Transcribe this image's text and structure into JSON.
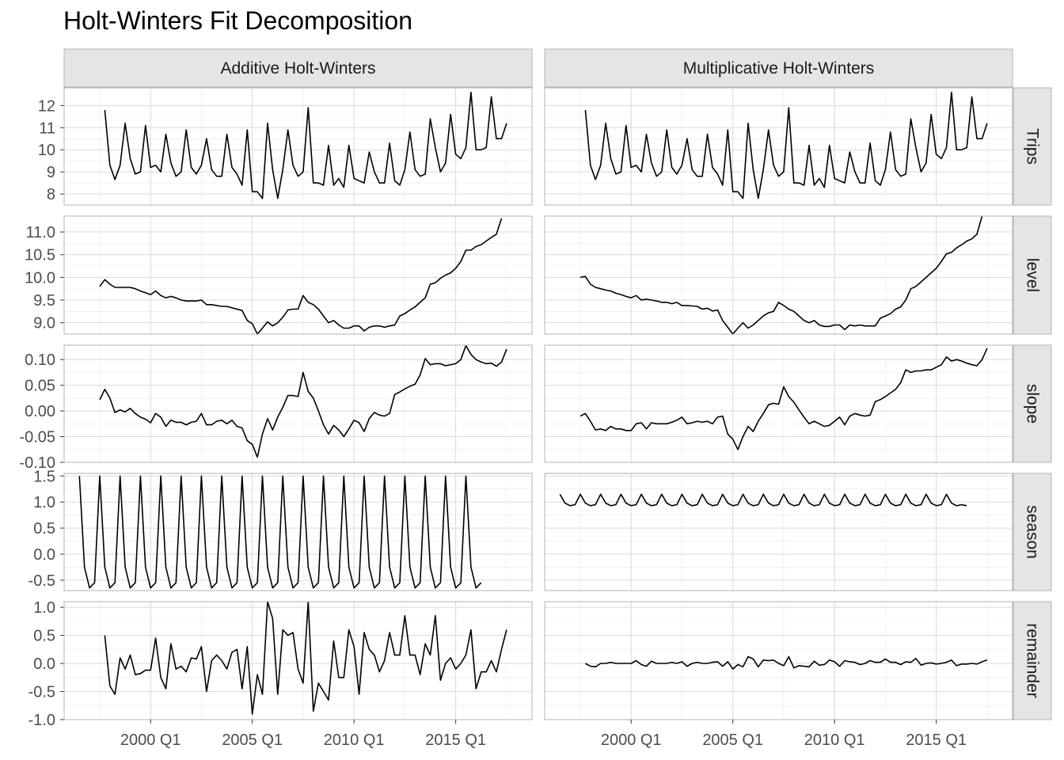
{
  "title": "Holt-Winters Fit Decomposition",
  "chart_data": {
    "type": "line",
    "title": "Holt-Winters Fit Decomposition",
    "facet_columns": [
      "Additive Holt-Winters",
      "Multiplicative Holt-Winters"
    ],
    "facet_rows": [
      "Trips",
      "level",
      "slope",
      "season",
      "remainder"
    ],
    "x_start": 1997.75,
    "x_step": 0.25,
    "x_axis": {
      "ticks": [
        2000,
        2005,
        2010,
        2015
      ],
      "tick_labels": [
        "2000 Q1",
        "2005 Q1",
        "2010 Q1",
        "2015 Q1"
      ],
      "lim": [
        1995.75,
        2018.75
      ]
    },
    "x_minor_ticks": [
      1997.5,
      2002.5,
      2007.5,
      2012.5,
      2017.5
    ],
    "rows": [
      {
        "name": "Trips",
        "ylim": [
          7.5,
          12.8
        ],
        "yticks": [
          8,
          9,
          10,
          11,
          12
        ],
        "ytick_labels": [
          "8",
          "9",
          "10",
          "11",
          "12"
        ],
        "series": {
          "additive": [
            11.8,
            9.3,
            8.65,
            9.3,
            11.2,
            9.6,
            8.9,
            9.0,
            11.1,
            9.2,
            9.3,
            9.0,
            10.7,
            9.4,
            8.8,
            9.0,
            10.9,
            9.2,
            8.9,
            9.3,
            10.5,
            9.1,
            8.8,
            8.8,
            10.7,
            9.2,
            8.9,
            8.4,
            10.9,
            8.1,
            8.1,
            7.8,
            11.2,
            9.1,
            7.8,
            9.1,
            10.9,
            9.3,
            8.8,
            9.0,
            11.9,
            8.5,
            8.5,
            8.4,
            10.2,
            8.4,
            8.7,
            8.3,
            10.2,
            8.7,
            8.6,
            8.5,
            9.9,
            9.0,
            8.5,
            8.5,
            10.3,
            8.6,
            8.4,
            9.1,
            10.8,
            9.1,
            8.8,
            8.9,
            11.4,
            10.1,
            9.0,
            9.4,
            11.6,
            9.8,
            9.6,
            10.1,
            12.6,
            10.0,
            10.0,
            10.1,
            12.4,
            10.5,
            10.5,
            11.2
          ],
          "multiplicative": [
            11.8,
            9.3,
            8.65,
            9.3,
            11.2,
            9.6,
            8.9,
            9.0,
            11.1,
            9.2,
            9.3,
            9.0,
            10.7,
            9.4,
            8.8,
            9.0,
            10.9,
            9.2,
            8.9,
            9.3,
            10.5,
            9.1,
            8.8,
            8.8,
            10.7,
            9.2,
            8.9,
            8.4,
            10.9,
            8.1,
            8.1,
            7.8,
            11.2,
            9.1,
            7.8,
            9.1,
            10.9,
            9.3,
            8.8,
            9.0,
            11.9,
            8.5,
            8.5,
            8.4,
            10.2,
            8.4,
            8.7,
            8.3,
            10.2,
            8.7,
            8.6,
            8.5,
            9.9,
            9.0,
            8.5,
            8.5,
            10.3,
            8.6,
            8.4,
            9.1,
            10.8,
            9.1,
            8.8,
            8.9,
            11.4,
            10.1,
            9.0,
            9.4,
            11.6,
            9.8,
            9.6,
            10.1,
            12.6,
            10.0,
            10.0,
            10.1,
            12.4,
            10.5,
            10.5,
            11.2
          ]
        }
      },
      {
        "name": "level",
        "ylim": [
          8.75,
          11.35
        ],
        "yticks": [
          9.0,
          9.5,
          10.0,
          10.5,
          11.0
        ],
        "ytick_labels": [
          "9.0",
          "9.5",
          "10.0",
          "10.5",
          "11.0"
        ],
        "series": {
          "additive": [
            9.8,
            9.95,
            9.85,
            9.78,
            9.78,
            9.78,
            9.78,
            9.75,
            9.7,
            9.66,
            9.62,
            9.7,
            9.6,
            9.55,
            9.58,
            9.55,
            9.5,
            9.48,
            9.48,
            9.48,
            9.5,
            9.4,
            9.4,
            9.38,
            9.36,
            9.36,
            9.33,
            9.3,
            9.27,
            9.05,
            8.98,
            8.75,
            8.88,
            9.02,
            8.93,
            9.0,
            9.12,
            9.28,
            9.3,
            9.3,
            9.6,
            9.45,
            9.4,
            9.3,
            9.15,
            9.0,
            9.05,
            8.95,
            8.88,
            8.88,
            8.93,
            8.93,
            8.82,
            8.9,
            8.93,
            8.93,
            8.9,
            8.93,
            8.95,
            9.15,
            9.2,
            9.28,
            9.35,
            9.45,
            9.55,
            9.85,
            9.88,
            9.98,
            10.05,
            10.1,
            10.2,
            10.35,
            10.6,
            10.6,
            10.68,
            10.72,
            10.8,
            10.88,
            10.95,
            11.3
          ],
          "multiplicative": [
            10.0,
            10.02,
            9.85,
            9.78,
            9.75,
            9.72,
            9.7,
            9.65,
            9.62,
            9.58,
            9.55,
            9.6,
            9.5,
            9.52,
            9.5,
            9.48,
            9.45,
            9.45,
            9.42,
            9.45,
            9.38,
            9.38,
            9.37,
            9.36,
            9.3,
            9.32,
            9.26,
            9.28,
            9.05,
            8.9,
            8.75,
            8.88,
            9.0,
            8.88,
            8.95,
            9.05,
            9.15,
            9.22,
            9.25,
            9.45,
            9.38,
            9.3,
            9.25,
            9.15,
            9.05,
            9.0,
            9.05,
            8.95,
            8.92,
            8.92,
            8.95,
            8.95,
            8.85,
            8.95,
            8.93,
            8.95,
            8.93,
            8.93,
            8.93,
            9.1,
            9.15,
            9.2,
            9.3,
            9.35,
            9.5,
            9.75,
            9.8,
            9.9,
            10.0,
            10.1,
            10.2,
            10.35,
            10.52,
            10.55,
            10.65,
            10.72,
            10.8,
            10.85,
            10.95,
            11.35
          ]
        }
      },
      {
        "name": "slope",
        "ylim": [
          -0.1,
          0.128
        ],
        "yticks": [
          -0.1,
          -0.05,
          0.0,
          0.05,
          0.1
        ],
        "ytick_labels": [
          "-0.10",
          "-0.05",
          "0.00",
          "0.05",
          "0.10"
        ],
        "series": {
          "additive": [
            0.022,
            0.042,
            0.025,
            -0.003,
            0.002,
            -0.002,
            0.005,
            -0.005,
            -0.012,
            -0.016,
            -0.023,
            -0.005,
            -0.012,
            -0.03,
            -0.018,
            -0.022,
            -0.022,
            -0.027,
            -0.022,
            -0.02,
            -0.005,
            -0.027,
            -0.027,
            -0.02,
            -0.018,
            -0.025,
            -0.018,
            -0.03,
            -0.033,
            -0.058,
            -0.065,
            -0.09,
            -0.045,
            -0.015,
            -0.037,
            -0.012,
            0.007,
            0.03,
            0.03,
            0.028,
            0.075,
            0.038,
            0.025,
            0.0,
            -0.027,
            -0.045,
            -0.028,
            -0.037,
            -0.05,
            -0.035,
            -0.018,
            -0.023,
            -0.04,
            -0.015,
            -0.003,
            -0.008,
            -0.01,
            -0.005,
            0.032,
            0.037,
            0.043,
            0.048,
            0.052,
            0.07,
            0.102,
            0.09,
            0.092,
            0.092,
            0.088,
            0.09,
            0.092,
            0.1,
            0.127,
            0.11,
            0.1,
            0.095,
            0.092,
            0.093,
            0.087,
            0.095,
            0.12
          ],
          "multiplicative": [
            -0.01,
            -0.005,
            -0.02,
            -0.037,
            -0.035,
            -0.038,
            -0.03,
            -0.035,
            -0.035,
            -0.038,
            -0.038,
            -0.025,
            -0.023,
            -0.035,
            -0.023,
            -0.025,
            -0.025,
            -0.025,
            -0.022,
            -0.018,
            -0.012,
            -0.025,
            -0.023,
            -0.02,
            -0.022,
            -0.02,
            -0.025,
            -0.012,
            -0.01,
            -0.045,
            -0.055,
            -0.075,
            -0.05,
            -0.03,
            -0.04,
            -0.02,
            -0.005,
            0.012,
            0.015,
            0.013,
            0.047,
            0.028,
            0.017,
            0.002,
            -0.012,
            -0.025,
            -0.02,
            -0.025,
            -0.03,
            -0.028,
            -0.02,
            -0.012,
            -0.027,
            -0.01,
            -0.005,
            -0.008,
            -0.01,
            -0.008,
            0.018,
            0.022,
            0.028,
            0.035,
            0.042,
            0.055,
            0.08,
            0.075,
            0.078,
            0.078,
            0.08,
            0.08,
            0.085,
            0.09,
            0.105,
            0.097,
            0.1,
            0.097,
            0.093,
            0.09,
            0.088,
            0.1,
            0.122
          ]
        }
      },
      {
        "name": "season",
        "ylim": [
          -0.7,
          1.55
        ],
        "yticks": [
          -0.5,
          0.0,
          0.5,
          1.0,
          1.5
        ],
        "ytick_labels": [
          "-0.5",
          "0.0",
          "0.5",
          "1.0",
          "1.5"
        ],
        "series": {
          "additive": [
            1.5,
            -0.25,
            -0.65,
            -0.55,
            1.5,
            -0.25,
            -0.65,
            -0.55,
            1.5,
            -0.25,
            -0.65,
            -0.55,
            1.5,
            -0.25,
            -0.65,
            -0.55,
            1.5,
            -0.25,
            -0.65,
            -0.55,
            1.5,
            -0.25,
            -0.65,
            -0.55,
            1.5,
            -0.25,
            -0.65,
            -0.55,
            1.5,
            -0.25,
            -0.65,
            -0.55,
            1.5,
            -0.25,
            -0.65,
            -0.55,
            1.5,
            -0.25,
            -0.65,
            -0.55,
            1.5,
            -0.25,
            -0.65,
            -0.55,
            1.5,
            -0.25,
            -0.65,
            -0.55,
            1.5,
            -0.25,
            -0.65,
            -0.55,
            1.5,
            -0.25,
            -0.65,
            -0.55,
            1.5,
            -0.25,
            -0.65,
            -0.55,
            1.5,
            -0.25,
            -0.65,
            -0.55,
            1.5,
            -0.25,
            -0.65,
            -0.55,
            1.5,
            -0.25,
            -0.65,
            -0.55,
            1.5,
            -0.25,
            -0.65,
            -0.55,
            1.5,
            -0.25,
            -0.65,
            -0.55
          ],
          "multiplicative": [
            1.15,
            0.98,
            0.93,
            0.95,
            1.15,
            0.98,
            0.93,
            0.95,
            1.15,
            0.98,
            0.93,
            0.95,
            1.15,
            0.98,
            0.93,
            0.95,
            1.15,
            0.98,
            0.93,
            0.95,
            1.15,
            0.98,
            0.93,
            0.95,
            1.15,
            0.98,
            0.93,
            0.95,
            1.15,
            0.98,
            0.93,
            0.95,
            1.15,
            0.98,
            0.93,
            0.95,
            1.15,
            0.98,
            0.93,
            0.95,
            1.15,
            0.98,
            0.93,
            0.95,
            1.15,
            0.98,
            0.93,
            0.95,
            1.15,
            0.98,
            0.93,
            0.95,
            1.15,
            0.98,
            0.93,
            0.95,
            1.15,
            0.98,
            0.93,
            0.95,
            1.15,
            0.98,
            0.93,
            0.95,
            1.15,
            0.98,
            0.93,
            0.95,
            1.15,
            0.98,
            0.93,
            0.95,
            1.15,
            0.98,
            0.93,
            0.95,
            1.15,
            0.98,
            0.93,
            0.95,
            0.93
          ]
        }
      },
      {
        "name": "remainder",
        "ylim": [
          -1.0,
          1.1
        ],
        "yticks": [
          -1.0,
          -0.5,
          0.0,
          0.5,
          1.0
        ],
        "ytick_labels": [
          "-1.0",
          "-0.5",
          "0.0",
          "0.5",
          "1.0"
        ],
        "series": {
          "additive": [
            0.5,
            -0.4,
            -0.55,
            0.1,
            -0.1,
            0.15,
            -0.2,
            -0.18,
            -0.12,
            -0.12,
            0.45,
            -0.25,
            -0.45,
            0.35,
            -0.1,
            -0.05,
            -0.15,
            0.1,
            0.08,
            0.3,
            -0.5,
            0.05,
            0.15,
            0.05,
            -0.1,
            0.2,
            0.25,
            -0.45,
            0.3,
            -0.9,
            -0.2,
            -0.55,
            1.1,
            0.8,
            -0.55,
            0.6,
            0.5,
            0.55,
            -0.1,
            -0.35,
            1.1,
            -0.85,
            -0.35,
            -0.5,
            -0.65,
            0.4,
            -0.25,
            -0.25,
            0.6,
            0.3,
            -0.55,
            0.55,
            0.25,
            0.15,
            -0.15,
            0.05,
            0.55,
            0.15,
            0.15,
            0.85,
            0.15,
            0.15,
            -0.2,
            0.35,
            0.15,
            0.85,
            -0.3,
            0.0,
            0.1,
            -0.1,
            0.0,
            0.15,
            0.6,
            -0.45,
            -0.15,
            -0.15,
            0.05,
            -0.15,
            0.25,
            0.6
          ],
          "multiplicative": [
            0.0,
            -0.05,
            -0.06,
            0.0,
            0.0,
            0.02,
            0.0,
            0.0,
            0.0,
            0.0,
            0.05,
            -0.02,
            -0.05,
            0.04,
            0.0,
            0.0,
            0.0,
            0.02,
            0.0,
            0.03,
            -0.05,
            0.0,
            0.02,
            0.0,
            0.0,
            0.02,
            0.03,
            -0.05,
            0.03,
            -0.1,
            -0.02,
            -0.06,
            0.12,
            0.08,
            -0.06,
            0.06,
            0.05,
            0.06,
            0.0,
            -0.04,
            0.12,
            -0.08,
            -0.04,
            -0.05,
            -0.06,
            0.04,
            -0.03,
            -0.02,
            0.06,
            0.03,
            -0.05,
            0.05,
            0.03,
            0.02,
            -0.02,
            0.0,
            0.05,
            0.02,
            0.02,
            0.08,
            0.02,
            0.02,
            -0.02,
            0.03,
            0.02,
            0.09,
            -0.03,
            0.0,
            0.01,
            -0.01,
            0.0,
            0.02,
            0.06,
            -0.04,
            -0.01,
            -0.01,
            0.0,
            -0.01,
            0.03,
            0.06
          ]
        }
      }
    ],
    "series_starts": {
      "Trips": {
        "additive": 1997.75,
        "multiplicative": 1997.75
      },
      "level": {
        "additive": 1997.5,
        "multiplicative": 1997.5
      },
      "slope": {
        "additive": 1997.5,
        "multiplicative": 1997.5
      },
      "season": {
        "additive": 1996.5,
        "multiplicative": 1996.5
      },
      "remainder": {
        "additive": 1997.75,
        "multiplicative": 1997.75
      }
    },
    "grid": true,
    "line_color": "#000000",
    "strip_fill": "#e5e5e5",
    "grid_major_color": "#d9d9d9",
    "grid_minor_color": "#ececec"
  }
}
